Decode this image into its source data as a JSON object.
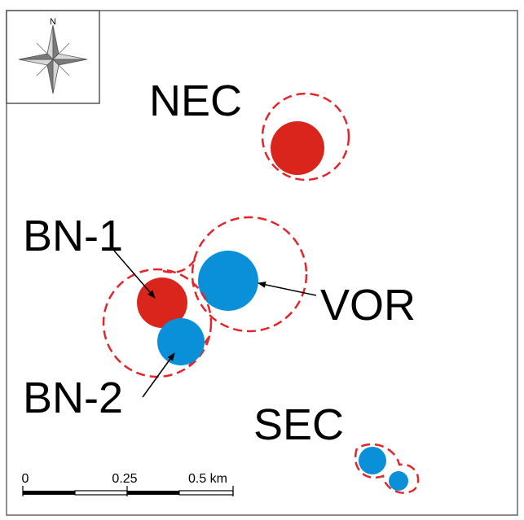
{
  "compass": {
    "north_label": "N",
    "icon": "compass-rose-icon"
  },
  "labels": {
    "nec": "NEC",
    "bn1": "BN-1",
    "bn2": "BN-2",
    "vor": "VOR",
    "sec": "SEC"
  },
  "scale_bar": {
    "tick_0": "0",
    "tick_1": "0.25",
    "tick_2": "0.5 km"
  },
  "colors": {
    "red_marker": "#d9251c",
    "blue_marker": "#0a8fd9",
    "zone_outline": "#e3262b"
  }
}
